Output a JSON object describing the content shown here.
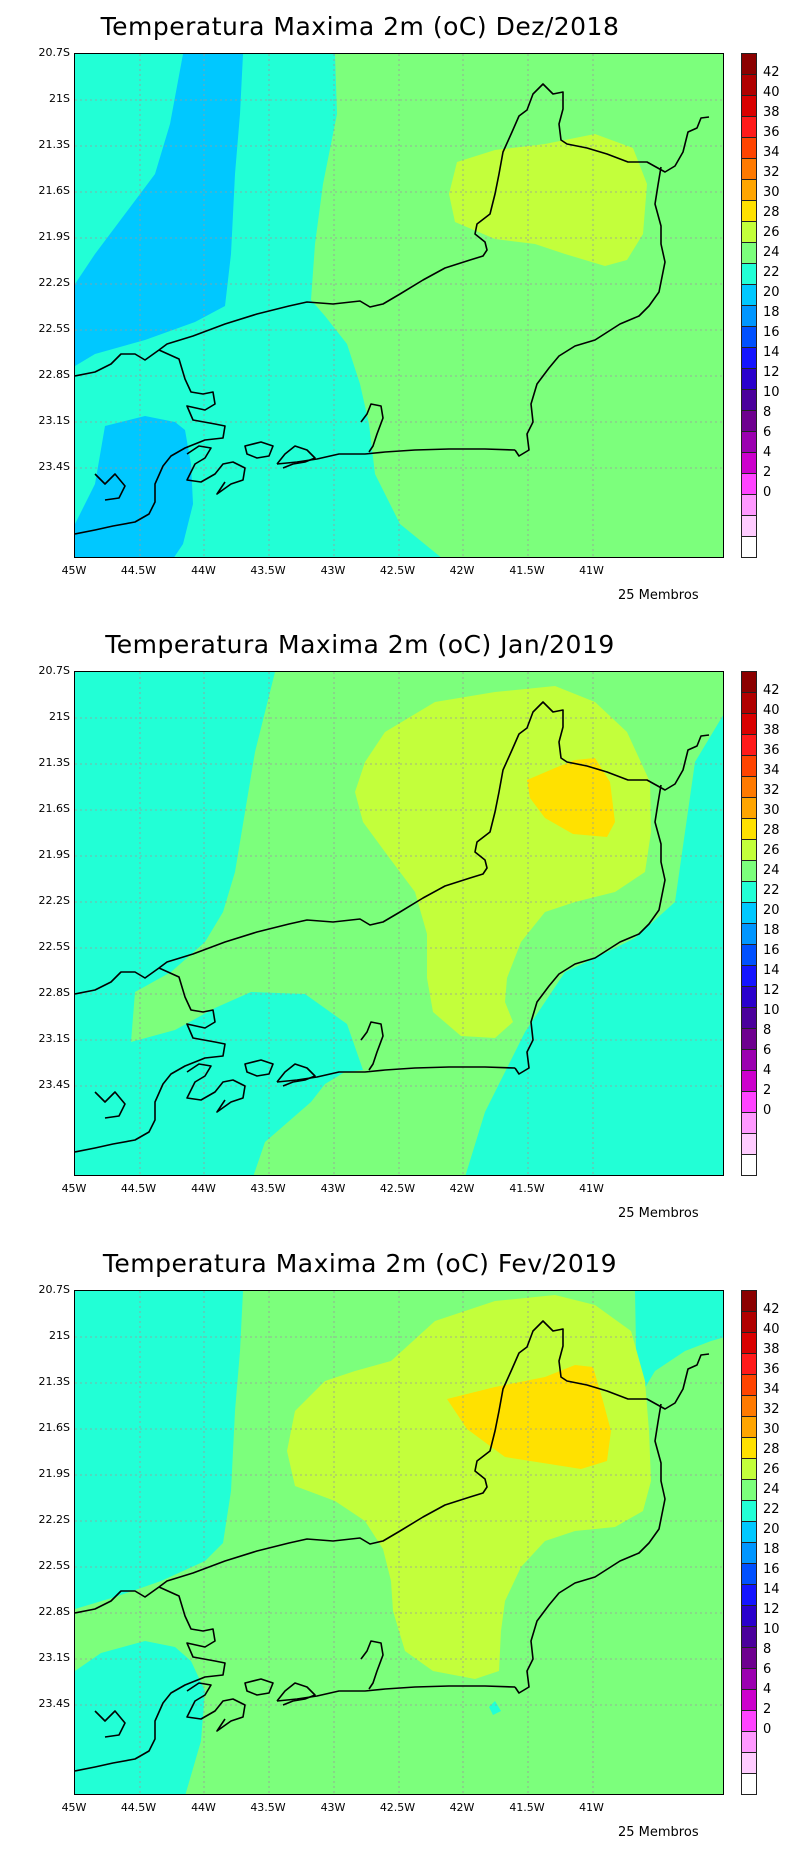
{
  "panels": [
    {
      "title": "Temperatura Maxima 2m (oC) Dez/2018",
      "members": "25 Membros"
    },
    {
      "title": "Temperatura Maxima 2m (oC) Jan/2019",
      "members": "25 Membros"
    },
    {
      "title": "Temperatura Maxima 2m (oC) Fev/2019",
      "members": "25 Membros"
    }
  ],
  "axis": {
    "y_ticks": [
      "20.7S",
      "21S",
      "21.3S",
      "21.6S",
      "21.9S",
      "22.2S",
      "22.5S",
      "22.8S",
      "23.1S",
      "23.4S"
    ],
    "x_ticks": [
      "45W",
      "44.5W",
      "44W",
      "43.5W",
      "43W",
      "42.5W",
      "42W",
      "41.5W",
      "41W"
    ]
  },
  "colorbar": {
    "labels": [
      "42",
      "40",
      "38",
      "36",
      "34",
      "32",
      "30",
      "28",
      "26",
      "24",
      "22",
      "20",
      "18",
      "16",
      "14",
      "12",
      "10",
      "8",
      "6",
      "4",
      "2",
      "0"
    ],
    "colors": [
      "#8b0000",
      "#b00000",
      "#d90000",
      "#ff1a1a",
      "#ff4400",
      "#ff7a00",
      "#ffa500",
      "#ffe100",
      "#c3ff3b",
      "#7cff7c",
      "#22ffd6",
      "#00c8ff",
      "#0096ff",
      "#0050ff",
      "#1414ff",
      "#2a00cc",
      "#4b009c",
      "#6e008f",
      "#9b00b0",
      "#cc00cc",
      "#ff44ff",
      "#ff99ff",
      "#ffccff",
      "#ffffff"
    ]
  },
  "palette": {
    "c22": "#00c8ff",
    "c24": "#22ffd6",
    "c26": "#7cff7c",
    "c28": "#c3ff3b",
    "c30": "#ffe100"
  }
}
